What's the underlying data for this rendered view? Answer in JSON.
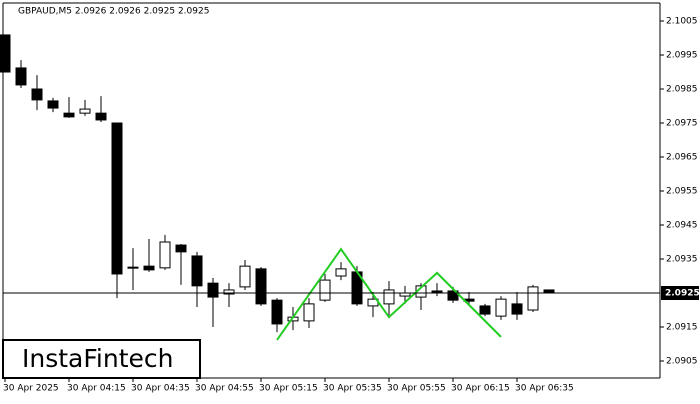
{
  "chart_data": {
    "type": "candlestick",
    "title": "GBPAUD,M5  2.0926 2.0926 2.0925 2.0925",
    "watermark": "InstaFintech",
    "categories": [
      "30 Apr 2025",
      null,
      null,
      null,
      "30 Apr 04:15",
      null,
      null,
      null,
      "30 Apr 04:35",
      null,
      null,
      null,
      "30 Apr 04:55",
      null,
      null,
      null,
      "30 Apr 05:15",
      null,
      null,
      null,
      "30 Apr 05:35",
      null,
      null,
      null,
      "30 Apr 05:55",
      null,
      null,
      null,
      "30 Apr 06:15",
      null,
      null,
      null,
      "30 Apr 06:35",
      null,
      null
    ],
    "open": [
      2.10009,
      2.09912,
      2.0985,
      2.09815,
      2.09779,
      2.09779,
      2.09779,
      2.0975,
      2.09324,
      2.09329,
      2.09324,
      2.09391,
      2.09359,
      2.09279,
      2.09247,
      2.09268,
      2.09321,
      2.09229,
      2.09168,
      2.09168,
      2.09229,
      2.093,
      2.09312,
      2.09212,
      2.09218,
      2.09241,
      2.09238,
      2.09253,
      2.09256,
      2.09232,
      2.09212,
      2.09182,
      2.09218,
      2.092,
      2.09259
    ],
    "high": [
      2.10009,
      2.09935,
      2.09891,
      2.09824,
      2.09826,
      2.09818,
      2.09829,
      2.0975,
      2.09382,
      2.09409,
      2.09421,
      2.09394,
      2.09371,
      2.09294,
      2.09279,
      2.09347,
      2.09326,
      2.09235,
      2.09209,
      2.09235,
      2.09306,
      2.09341,
      2.09329,
      2.09253,
      2.09285,
      2.09271,
      2.09279,
      2.09279,
      2.09268,
      2.09253,
      2.09218,
      2.09241,
      2.09253,
      2.09274,
      2.09259
    ],
    "low": [
      2.099,
      2.09853,
      2.09788,
      2.09782,
      2.09765,
      2.09771,
      2.09753,
      2.09235,
      2.09259,
      2.09312,
      2.09318,
      2.09274,
      2.09209,
      2.0915,
      2.09209,
      2.09259,
      2.09212,
      2.09135,
      2.09141,
      2.09147,
      2.09224,
      2.09288,
      2.09212,
      2.09179,
      2.09185,
      2.09218,
      2.092,
      2.09241,
      2.09221,
      2.09215,
      2.09182,
      2.09171,
      2.09171,
      2.09194,
      2.0925
    ],
    "close": [
      2.099,
      2.09862,
      2.09818,
      2.09794,
      2.09768,
      2.09791,
      2.09759,
      2.09306,
      2.09326,
      2.09318,
      2.094,
      2.09371,
      2.09271,
      2.09238,
      2.09259,
      2.09329,
      2.09218,
      2.09159,
      2.09179,
      2.09218,
      2.09288,
      2.09321,
      2.09218,
      2.09232,
      2.09259,
      2.0925,
      2.09271,
      2.09256,
      2.09229,
      2.09226,
      2.09188,
      2.09232,
      2.09188,
      2.09268,
      2.0925
    ],
    "bull_color": "#ffffff",
    "bear_color": "#000000",
    "ylim": [
      2.09,
      2.10103
    ],
    "yticks": [
      2.1005,
      2.0995,
      2.0985,
      2.0975,
      2.0965,
      2.0955,
      2.0945,
      2.0935,
      2.0915,
      2.0905
    ],
    "last_price": 2.0925,
    "pattern": {
      "color": "#22cc22",
      "x": [
        17,
        21,
        24,
        27,
        31
      ],
      "values": [
        2.09112,
        2.09379,
        2.09179,
        2.09309,
        2.09121
      ]
    }
  }
}
